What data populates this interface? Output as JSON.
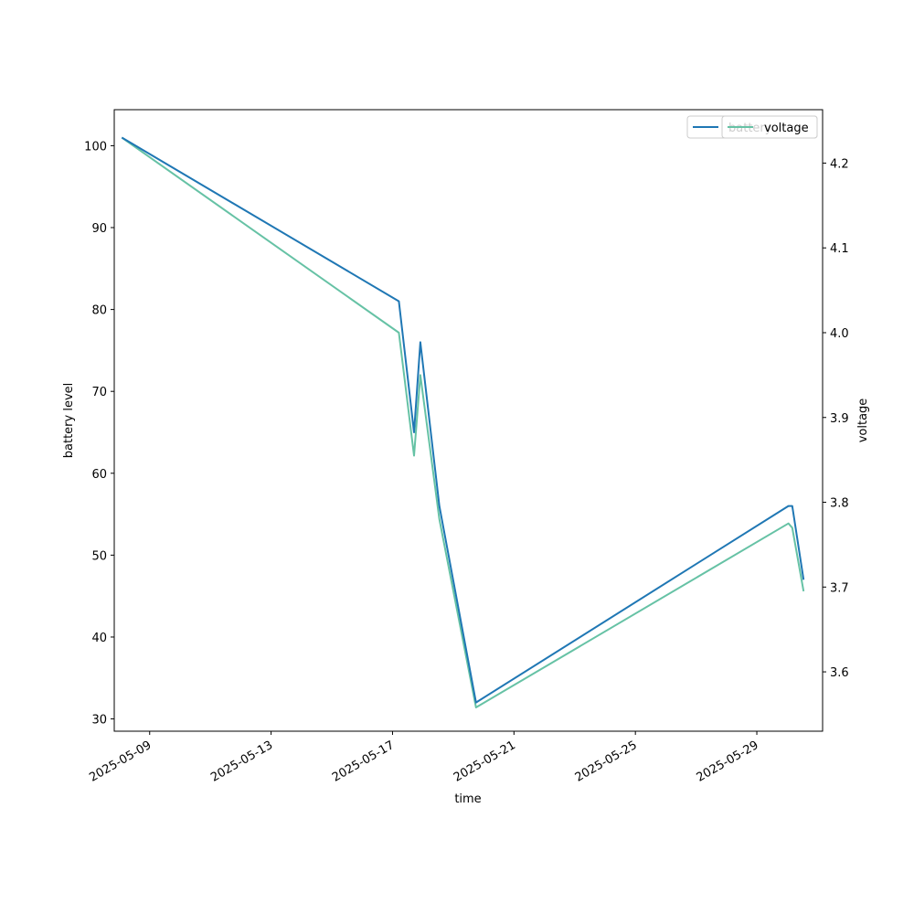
{
  "chart_data": {
    "type": "line",
    "xlabel": "time",
    "ylabel": "battery level",
    "y2label": "voltage",
    "x_ticks": [
      "2025-05-09",
      "2025-05-13",
      "2025-05-17",
      "2025-05-21",
      "2025-05-25",
      "2025-05-29"
    ],
    "y_ticks": [
      30,
      40,
      50,
      60,
      70,
      80,
      90,
      100
    ],
    "y2_ticks": [
      3.6,
      3.7,
      3.8,
      3.9,
      4.0,
      4.1,
      4.2
    ],
    "xlim": [
      "2025-05-07T20:00",
      "2025-05-31T04:00"
    ],
    "ylim": [
      28.5,
      104.4
    ],
    "y2lim": [
      3.53,
      4.263
    ],
    "grid": false,
    "legend_left": "top-right",
    "legend_right": "top-right",
    "series": [
      {
        "name": "battery",
        "axis": "left",
        "color": "#1f77b4",
        "points": [
          [
            "2025-05-08T02:00",
            101
          ],
          [
            "2025-05-17T05:00",
            81
          ],
          [
            "2025-05-17T17:00",
            65
          ],
          [
            "2025-05-17T22:00",
            76
          ],
          [
            "2025-05-18T13:00",
            56
          ],
          [
            "2025-05-19T18:00",
            32
          ],
          [
            "2025-05-30T01:00",
            56
          ],
          [
            "2025-05-30T04:00",
            56
          ],
          [
            "2025-05-30T13:00",
            47
          ]
        ]
      },
      {
        "name": "voltage",
        "axis": "right",
        "color": "#66c2a5",
        "points": [
          [
            "2025-05-08T02:00",
            4.23
          ],
          [
            "2025-05-17T05:00",
            4.0
          ],
          [
            "2025-05-17T17:00",
            3.855
          ],
          [
            "2025-05-17T22:00",
            3.95
          ],
          [
            "2025-05-18T13:00",
            3.78
          ],
          [
            "2025-05-19T18:00",
            3.558
          ],
          [
            "2025-05-30T01:00",
            3.775
          ],
          [
            "2025-05-30T04:00",
            3.77
          ],
          [
            "2025-05-30T13:00",
            3.695
          ]
        ]
      }
    ]
  }
}
